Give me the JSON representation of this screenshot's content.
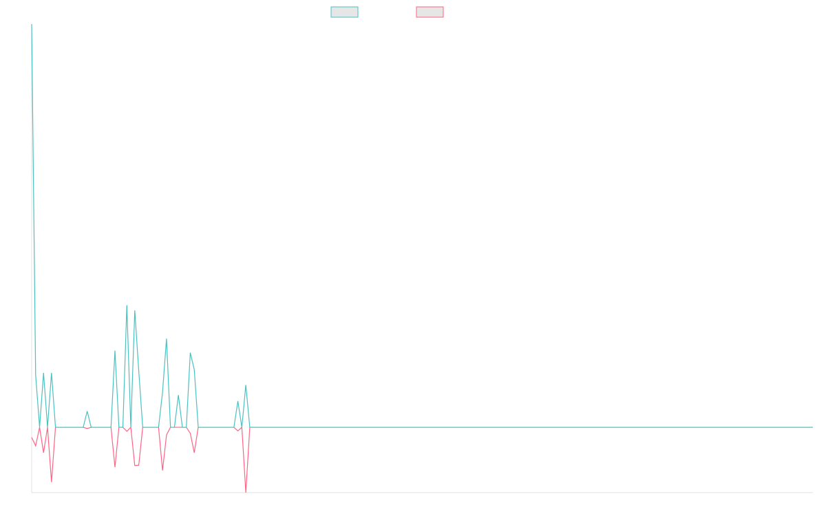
{
  "chart_data": {
    "type": "line",
    "ylim": [
      -16.2,
      100
    ],
    "series": [
      {
        "color": "#4bc0c0",
        "values": [
          100,
          13,
          0,
          13.5,
          0,
          13.5,
          0,
          0,
          0,
          0,
          0,
          0,
          0,
          0,
          4,
          0,
          0,
          0,
          0,
          0,
          0,
          19,
          0,
          0,
          30.3,
          0,
          29,
          14,
          0,
          0,
          0,
          0,
          0,
          8.7,
          22,
          0,
          0,
          8,
          0,
          0,
          18.5,
          14.3,
          0,
          0,
          0,
          0,
          0,
          0,
          0,
          0,
          0,
          0,
          6.5,
          0,
          10.5,
          0,
          0,
          0,
          0,
          0,
          0,
          0,
          0,
          0,
          0,
          0,
          0,
          0,
          0,
          0,
          0,
          0,
          0,
          0,
          0,
          0,
          0,
          0,
          0,
          0,
          0,
          0,
          0,
          0,
          0,
          0,
          0,
          0,
          0,
          0,
          0,
          0,
          0,
          0,
          0,
          0,
          0,
          0,
          0,
          0,
          0,
          0,
          0,
          0,
          0,
          0,
          0,
          0,
          0,
          0,
          0,
          0,
          0,
          0,
          0,
          0,
          0,
          0,
          0,
          0,
          0,
          0,
          0,
          0,
          0,
          0,
          0,
          0,
          0,
          0,
          0,
          0,
          0,
          0,
          0,
          0,
          0,
          0,
          0,
          0,
          0,
          0,
          0,
          0,
          0,
          0,
          0,
          0,
          0,
          0,
          0,
          0,
          0,
          0,
          0,
          0,
          0,
          0,
          0,
          0,
          0,
          0,
          0,
          0,
          0,
          0,
          0,
          0,
          0,
          0,
          0,
          0,
          0,
          0,
          0,
          0,
          0,
          0,
          0,
          0,
          0,
          0,
          0,
          0,
          0,
          0,
          0,
          0,
          0,
          0,
          0,
          0,
          0,
          0,
          0,
          0,
          0,
          0
        ]
      },
      {
        "color": "#ff6384",
        "values": [
          -2.5,
          -4.6,
          0,
          -6.3,
          0,
          -13.6,
          0,
          0,
          0,
          0,
          0,
          0,
          0,
          0,
          -0.3,
          0,
          0,
          0,
          0,
          0,
          0,
          -9.9,
          0,
          0,
          -1,
          0,
          -9.5,
          -9.4,
          0,
          0,
          0,
          0,
          0,
          -10.7,
          -1.9,
          0,
          0,
          0,
          0,
          0,
          -1.5,
          -6.3,
          0,
          0,
          0,
          0,
          0,
          0,
          0,
          0,
          0,
          0,
          -0.9,
          0,
          -16.2,
          0,
          0,
          0,
          0,
          0,
          0,
          0,
          0,
          0,
          0,
          0,
          0,
          0,
          0,
          0,
          0,
          0,
          0,
          0,
          0,
          0,
          0,
          0,
          0,
          0,
          0,
          0,
          0,
          0,
          0,
          0,
          0,
          0,
          0,
          0,
          0,
          0,
          0,
          0,
          0,
          0,
          0,
          0,
          0,
          0,
          0,
          0,
          0,
          0,
          0,
          0,
          0,
          0,
          0,
          0,
          0,
          0,
          0,
          0,
          0,
          0,
          0,
          0,
          0,
          0,
          0,
          0,
          0,
          0,
          0,
          0,
          0,
          0,
          0,
          0,
          0,
          0,
          0,
          0,
          0,
          0,
          0,
          0,
          0,
          0,
          0,
          0,
          0,
          0,
          0,
          0,
          0,
          0,
          0,
          0,
          0,
          0,
          0,
          0,
          0,
          0,
          0,
          0,
          0,
          0,
          0,
          0,
          0,
          0,
          0,
          0,
          0,
          0,
          0,
          0,
          0,
          0,
          0,
          0,
          0,
          0,
          0,
          0,
          0,
          0,
          0,
          0,
          0,
          0,
          0,
          0,
          0,
          0,
          0,
          0,
          0,
          0,
          0,
          0,
          0,
          0,
          0,
          0
        ]
      }
    ]
  }
}
